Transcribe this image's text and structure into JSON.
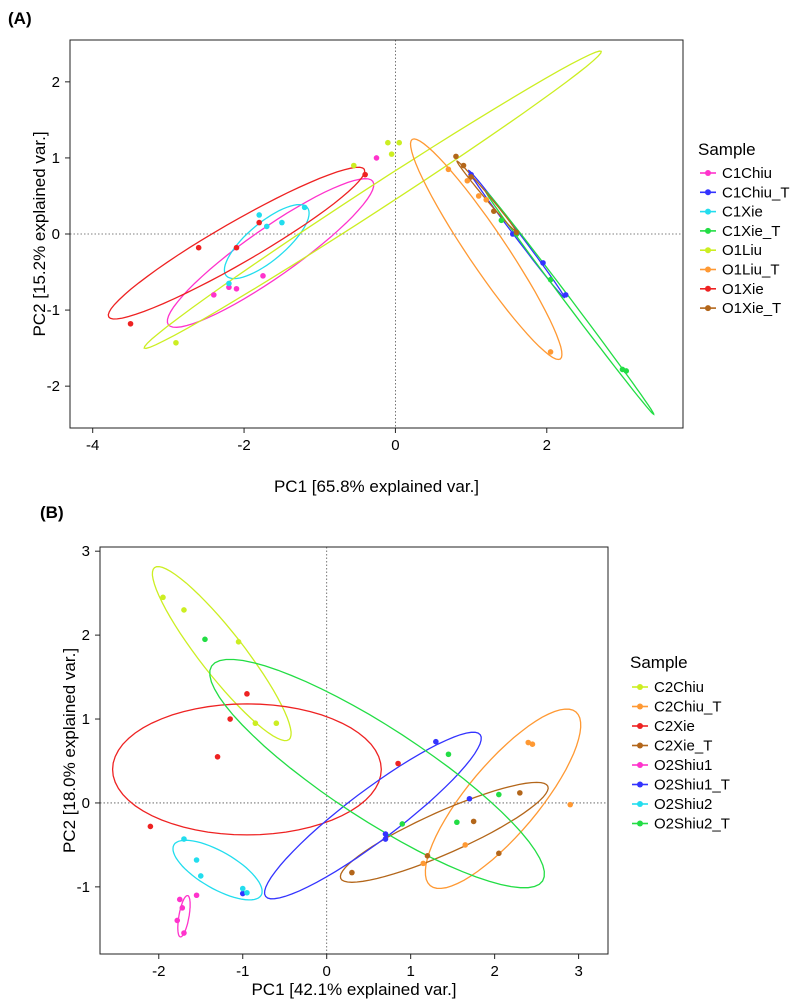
{
  "chart_data": [
    {
      "panel": "(A)",
      "type": "scatter",
      "xlabel": "PC1  [65.8% explained var.]",
      "ylabel": "PC2  [15.2% explained var.]",
      "xlim": [
        -4.3,
        3.8
      ],
      "ylim": [
        -2.55,
        2.55
      ],
      "xticks": [
        -4,
        -2,
        0,
        2
      ],
      "yticks": [
        -2,
        -1,
        0,
        1,
        2
      ],
      "legend": {
        "title": "Sample",
        "placement": "right"
      },
      "series": [
        {
          "name": "C1Chiu",
          "color": "#ff33cc",
          "points": [
            [
              -2.4,
              -0.8
            ],
            [
              -2.2,
              -0.7
            ],
            [
              -2.1,
              -0.72
            ],
            [
              -1.75,
              -0.55
            ],
            [
              -0.25,
              1.0
            ]
          ],
          "ellipse": {
            "cx": -1.65,
            "cy": -0.25,
            "rx": 1.65,
            "ry": 0.32,
            "angle": 35
          }
        },
        {
          "name": "C1Chiu_T",
          "color": "#3333ff",
          "points": [
            [
              1.0,
              0.78
            ],
            [
              1.55,
              0.0
            ],
            [
              1.95,
              -0.38
            ],
            [
              2.25,
              -0.8
            ]
          ],
          "ellipse": {
            "cx": 1.6,
            "cy": 0.0,
            "rx": 1.05,
            "ry": 0.035,
            "angle": -53
          }
        },
        {
          "name": "C1Xie",
          "color": "#22ddee",
          "points": [
            [
              -2.2,
              -0.65
            ],
            [
              -1.8,
              0.25
            ],
            [
              -1.7,
              0.1
            ],
            [
              -1.5,
              0.15
            ],
            [
              -1.2,
              0.35
            ]
          ],
          "ellipse": {
            "cx": -1.7,
            "cy": -0.1,
            "rx": 0.7,
            "ry": 0.25,
            "angle": 40
          }
        },
        {
          "name": "C1Xie_T",
          "color": "#22dd44",
          "points": [
            [
              1.4,
              0.18
            ],
            [
              1.6,
              0.0
            ],
            [
              2.05,
              -0.6
            ],
            [
              3.0,
              -1.78
            ],
            [
              3.05,
              -1.8
            ]
          ],
          "ellipse": {
            "cx": 2.3,
            "cy": -0.9,
            "rx": 1.85,
            "ry": 0.04,
            "angle": -53
          }
        },
        {
          "name": "O1Liu",
          "color": "#ccee22",
          "points": [
            [
              -2.9,
              -1.43
            ],
            [
              -0.55,
              0.9
            ],
            [
              -0.1,
              1.2
            ],
            [
              -0.05,
              1.05
            ],
            [
              0.05,
              1.2
            ]
          ],
          "ellipse": {
            "cx": -0.3,
            "cy": 0.45,
            "rx": 3.6,
            "ry": 0.16,
            "angle": 33
          }
        },
        {
          "name": "O1Liu_T",
          "color": "#ff9933",
          "points": [
            [
              0.7,
              0.85
            ],
            [
              0.95,
              0.7
            ],
            [
              1.1,
              0.5
            ],
            [
              1.2,
              0.45
            ],
            [
              2.05,
              -1.55
            ]
          ],
          "ellipse": {
            "cx": 1.2,
            "cy": -0.2,
            "rx": 1.75,
            "ry": 0.25,
            "angle": -56
          }
        },
        {
          "name": "O1Xie",
          "color": "#ee2222",
          "points": [
            [
              -3.5,
              -1.18
            ],
            [
              -2.6,
              -0.18
            ],
            [
              -2.1,
              -0.18
            ],
            [
              -1.8,
              0.15
            ],
            [
              -0.4,
              0.78
            ]
          ],
          "ellipse": {
            "cx": -2.1,
            "cy": -0.12,
            "rx": 1.95,
            "ry": 0.27,
            "angle": 30
          }
        },
        {
          "name": "O1Xie_T",
          "color": "#b3661a",
          "points": [
            [
              0.8,
              1.02
            ],
            [
              0.9,
              0.9
            ],
            [
              1.0,
              0.75
            ],
            [
              1.3,
              0.3
            ],
            [
              1.6,
              0.02
            ]
          ],
          "ellipse": {
            "cx": 1.2,
            "cy": 0.5,
            "rx": 0.6,
            "ry": 0.03,
            "angle": -50
          }
        }
      ]
    },
    {
      "panel": "(B)",
      "type": "scatter",
      "xlabel": "PC1  [42.1% explained var.]",
      "ylabel": "PC2  [18.0% explained var.]",
      "xlim": [
        -2.7,
        3.35
      ],
      "ylim": [
        -1.8,
        3.05
      ],
      "xticks": [
        -2,
        -1,
        0,
        1,
        2,
        3
      ],
      "yticks": [
        -1,
        0,
        1,
        2,
        3
      ],
      "legend": {
        "title": "Sample",
        "placement": "right"
      },
      "series": [
        {
          "name": "C2Chiu",
          "color": "#ccee22",
          "points": [
            [
              -1.95,
              2.45
            ],
            [
              -1.7,
              2.3
            ],
            [
              -1.05,
              1.92
            ],
            [
              -0.85,
              0.95
            ],
            [
              -0.6,
              0.95
            ]
          ],
          "ellipse": {
            "cx": -1.25,
            "cy": 1.78,
            "rx": 1.3,
            "ry": 0.26,
            "angle": -52
          }
        },
        {
          "name": "C2Chiu_T",
          "color": "#ff9933",
          "points": [
            [
              1.15,
              -0.72
            ],
            [
              1.65,
              -0.5
            ],
            [
              2.4,
              0.72
            ],
            [
              2.45,
              0.7
            ],
            [
              2.9,
              -0.02
            ]
          ],
          "ellipse": {
            "cx": 2.1,
            "cy": 0.05,
            "rx": 1.35,
            "ry": 0.42,
            "angle": 50
          }
        },
        {
          "name": "C2Xie",
          "color": "#ee2222",
          "points": [
            [
              -2.1,
              -0.28
            ],
            [
              -1.3,
              0.55
            ],
            [
              -1.15,
              1.0
            ],
            [
              -0.95,
              1.3
            ],
            [
              0.85,
              0.47
            ]
          ],
          "ellipse": {
            "cx": -0.95,
            "cy": 0.4,
            "rx": 1.6,
            "ry": 0.78,
            "angle": 0
          }
        },
        {
          "name": "C2Xie_T",
          "color": "#b3661a",
          "points": [
            [
              0.3,
              -0.83
            ],
            [
              1.2,
              -0.63
            ],
            [
              1.75,
              -0.22
            ],
            [
              2.05,
              -0.6
            ],
            [
              2.3,
              0.12
            ]
          ],
          "ellipse": {
            "cx": 1.4,
            "cy": -0.35,
            "rx": 1.35,
            "ry": 0.25,
            "angle": 24
          }
        },
        {
          "name": "O2Shiu1",
          "color": "#ff33cc",
          "points": [
            [
              -1.78,
              -1.4
            ],
            [
              -1.75,
              -1.15
            ],
            [
              -1.72,
              -1.25
            ],
            [
              -1.7,
              -1.55
            ],
            [
              -1.55,
              -1.1
            ]
          ],
          "ellipse": {
            "cx": -1.7,
            "cy": -1.35,
            "rx": 0.25,
            "ry": 0.06,
            "angle": 80
          }
        },
        {
          "name": "O2Shiu1_T",
          "color": "#3333ff",
          "points": [
            [
              -1.0,
              -1.08
            ],
            [
              0.7,
              -0.37
            ],
            [
              0.7,
              -0.43
            ],
            [
              1.3,
              0.73
            ],
            [
              1.7,
              0.05
            ]
          ],
          "ellipse": {
            "cx": 0.55,
            "cy": -0.15,
            "rx": 1.6,
            "ry": 0.3,
            "angle": 37
          }
        },
        {
          "name": "O2Shiu2",
          "color": "#22ddee",
          "points": [
            [
              -1.7,
              -0.43
            ],
            [
              -1.55,
              -0.68
            ],
            [
              -1.5,
              -0.87
            ],
            [
              -1.0,
              -1.02
            ],
            [
              -0.95,
              -1.07
            ]
          ],
          "ellipse": {
            "cx": -1.3,
            "cy": -0.8,
            "rx": 0.6,
            "ry": 0.22,
            "angle": -30
          }
        },
        {
          "name": "O2Shiu2_T",
          "color": "#22dd44",
          "points": [
            [
              -1.45,
              1.95
            ],
            [
              0.9,
              -0.25
            ],
            [
              1.45,
              0.58
            ],
            [
              1.55,
              -0.23
            ],
            [
              2.05,
              0.1
            ]
          ],
          "ellipse": {
            "cx": 0.6,
            "cy": 0.35,
            "rx": 2.35,
            "ry": 0.55,
            "angle": -33
          }
        }
      ]
    }
  ]
}
